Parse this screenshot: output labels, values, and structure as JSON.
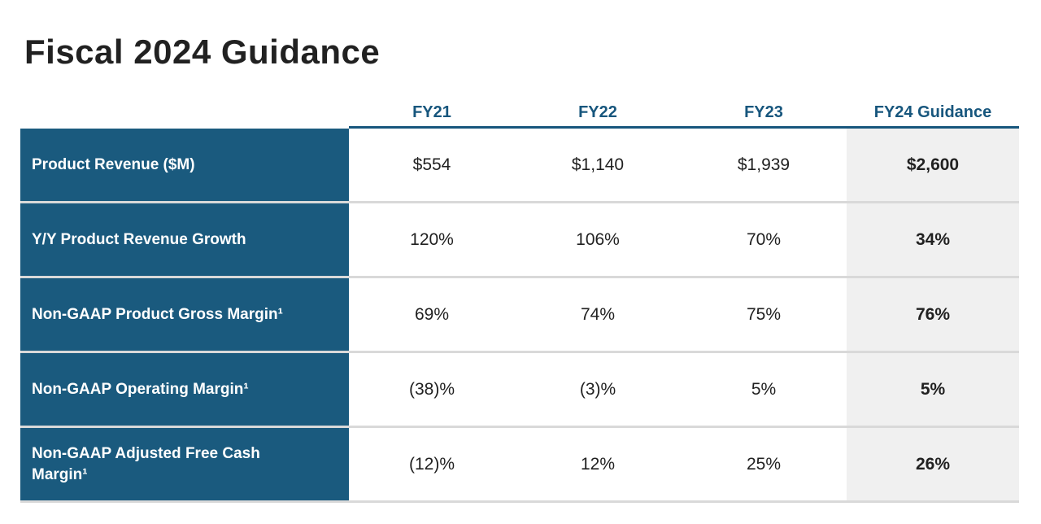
{
  "page": {
    "title": "Fiscal 2024 Guidance"
  },
  "colors": {
    "label_column_blue": "#1A5A7E",
    "header_text_blue": "#17567D",
    "header_underline_blue": "#17567D",
    "guidance_column_gray": "#F0F0F0",
    "row_separator_gray": "#D9D9D9",
    "value_text": "#212121",
    "title_text": "#212121",
    "label_text": "#FFFFFF"
  },
  "chart_data": {
    "type": "table",
    "title": "Fiscal 2024 Guidance",
    "columns": [
      "FY21",
      "FY22",
      "FY23",
      "FY24 Guidance"
    ],
    "rows": [
      {
        "metric": "Product Revenue ($M)",
        "values": [
          "$554",
          "$1,140",
          "$1,939",
          "$2,600"
        ]
      },
      {
        "metric": "Y/Y Product Revenue Growth",
        "values": [
          "120%",
          "106%",
          "70%",
          "34%"
        ]
      },
      {
        "metric": "Non-GAAP Product Gross Margin¹",
        "values": [
          "69%",
          "74%",
          "75%",
          "76%"
        ]
      },
      {
        "metric": "Non-GAAP Operating Margin¹",
        "values": [
          "(38)%",
          "(3)%",
          "5%",
          "5%"
        ]
      },
      {
        "metric": "Non-GAAP Adjusted Free Cash Margin¹",
        "values": [
          "(12)%",
          "12%",
          "25%",
          "26%"
        ]
      }
    ],
    "layout": {
      "highlighted_column": "FY24 Guidance",
      "label_column_style": "dark-blue-fill-white-bold-text",
      "highlighted_column_style": "light-gray-fill-bold-text"
    }
  }
}
